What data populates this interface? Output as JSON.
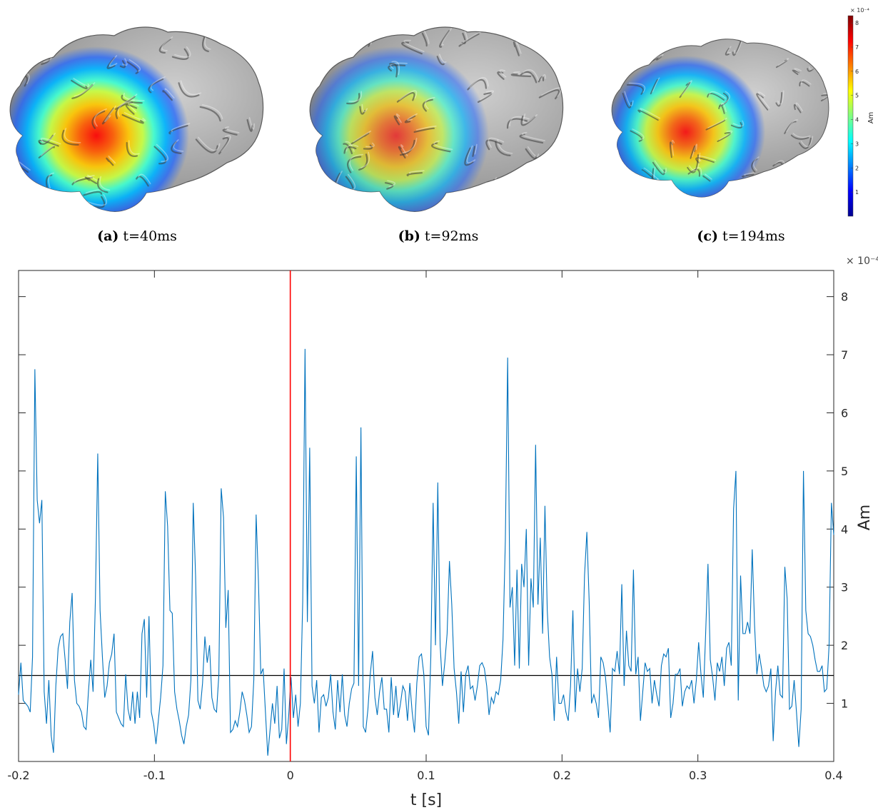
{
  "brains": [
    {
      "caption_label": "(a)",
      "caption_text": "t=40ms",
      "intensity": 1.0
    },
    {
      "caption_label": "(b)",
      "caption_text": "t=92ms",
      "intensity": 0.72
    },
    {
      "caption_label": "(c)",
      "caption_text": "t=194ms",
      "intensity": 0.92
    }
  ],
  "colorbar": {
    "exponent_label": "× 10⁻⁴",
    "unit_label": "Am",
    "ticks": [
      "1",
      "2",
      "3",
      "4",
      "5",
      "6",
      "7",
      "8"
    ],
    "range": [
      0,
      8.3
    ],
    "colors": [
      "#00008f",
      "#0000ff",
      "#0080ff",
      "#00ffff",
      "#80ff80",
      "#ffff00",
      "#ff8000",
      "#ff0000",
      "#800000"
    ]
  },
  "chart_data": {
    "type": "line",
    "xlabel": "t [s]",
    "ylabel": "Am",
    "y_exponent_label": "× 10⁻⁴",
    "xlim": [
      -0.2,
      0.4
    ],
    "ylim": [
      0,
      8.45
    ],
    "x_ticks": [
      "-0.2",
      "-0.1",
      "0",
      "0.1",
      "0.2",
      "0.3",
      "0.4"
    ],
    "y_ticks": [
      "1",
      "2",
      "3",
      "4",
      "5",
      "6",
      "7",
      "8"
    ],
    "threshold": 1.48,
    "marker_x": 0.0,
    "line_color": "#0072bd",
    "threshold_color": "#000000",
    "marker_color": "#ff0000",
    "x_start": -0.2,
    "x_step": 0.002,
    "values": [
      1.15,
      1.7,
      1.05,
      1.0,
      0.95,
      0.85,
      1.8,
      6.75,
      4.5,
      4.1,
      4.5,
      1.2,
      0.65,
      1.4,
      0.45,
      0.15,
      1.3,
      1.95,
      2.15,
      2.2,
      1.75,
      1.25,
      2.4,
      2.9,
      1.4,
      1.0,
      0.95,
      0.85,
      0.6,
      0.55,
      1.2,
      1.75,
      1.2,
      2.8,
      5.3,
      2.6,
      1.8,
      1.1,
      1.3,
      1.7,
      1.85,
      2.2,
      0.85,
      0.75,
      0.65,
      0.6,
      1.5,
      0.9,
      0.7,
      1.2,
      0.65,
      1.2,
      0.75,
      2.2,
      2.45,
      1.1,
      2.5,
      0.85,
      0.65,
      0.3,
      0.7,
      1.1,
      1.65,
      4.65,
      4.05,
      2.6,
      2.55,
      1.2,
      0.9,
      0.7,
      0.45,
      0.3,
      0.6,
      0.8,
      1.4,
      4.45,
      3.2,
      1.05,
      0.9,
      1.35,
      2.15,
      1.7,
      2.0,
      1.1,
      0.9,
      0.85,
      1.5,
      4.7,
      4.2,
      2.3,
      2.95,
      0.5,
      0.55,
      0.7,
      0.6,
      0.85,
      1.2,
      1.05,
      0.8,
      0.5,
      0.6,
      1.4,
      4.25,
      3.1,
      1.5,
      1.6,
      0.85,
      0.1,
      0.55,
      1.0,
      0.65,
      1.3,
      0.4,
      0.55,
      1.6,
      0.3,
      0.8,
      1.45,
      0.75,
      1.15,
      0.6,
      1.0,
      2.75,
      7.1,
      2.4,
      5.4,
      1.3,
      1.0,
      1.4,
      0.5,
      1.1,
      1.15,
      0.95,
      1.1,
      1.5,
      0.85,
      0.55,
      1.4,
      0.85,
      1.5,
      0.8,
      0.6,
      1.0,
      1.25,
      1.35,
      5.25,
      1.3,
      5.75,
      0.6,
      0.5,
      0.9,
      1.5,
      1.9,
      1.1,
      0.8,
      1.2,
      1.45,
      0.9,
      0.9,
      0.5,
      1.45,
      0.8,
      1.3,
      0.75,
      1.0,
      1.3,
      1.2,
      0.7,
      1.35,
      0.85,
      0.5,
      1.35,
      1.8,
      1.85,
      1.5,
      0.6,
      0.45,
      1.8,
      4.45,
      2.0,
      4.8,
      2.0,
      1.3,
      1.7,
      2.2,
      3.45,
      2.7,
      1.6,
      1.2,
      0.65,
      1.55,
      0.85,
      1.5,
      1.65,
      1.25,
      1.3,
      1.05,
      1.3,
      1.65,
      1.7,
      1.6,
      1.3,
      0.8,
      1.1,
      1.0,
      1.2,
      1.15,
      1.4,
      2.1,
      3.8,
      6.95,
      2.65,
      3.0,
      1.65,
      3.3,
      1.6,
      3.4,
      3.0,
      4.0,
      1.65,
      3.15,
      2.65,
      5.45,
      2.7,
      3.85,
      2.2,
      4.4,
      2.6,
      1.8,
      1.5,
      0.7,
      1.8,
      1.0,
      1.0,
      1.15,
      0.85,
      0.7,
      1.3,
      2.6,
      0.85,
      1.6,
      1.2,
      1.6,
      3.2,
      3.95,
      2.75,
      1.0,
      1.15,
      1.0,
      0.75,
      1.8,
      1.7,
      1.45,
      1.0,
      0.5,
      1.6,
      1.55,
      1.9,
      1.5,
      3.05,
      1.3,
      2.25,
      1.65,
      1.55,
      3.3,
      1.5,
      1.8,
      0.7,
      1.2,
      1.7,
      1.55,
      1.6,
      1.0,
      1.4,
      1.15,
      0.95,
      1.65,
      1.85,
      1.8,
      1.95,
      0.75,
      1.0,
      1.5,
      1.5,
      1.6,
      0.95,
      1.2,
      1.3,
      1.25,
      1.4,
      1.0,
      1.4,
      2.05,
      1.5,
      1.1,
      2.2,
      3.4,
      1.75,
      1.45,
      1.05,
      1.7,
      1.55,
      1.8,
      1.3,
      1.95,
      2.05,
      1.65,
      4.35,
      5.0,
      1.05,
      3.2,
      2.2,
      2.2,
      2.4,
      2.2,
      3.65,
      2.35,
      1.5,
      1.85,
      1.6,
      1.3,
      1.2,
      1.3,
      1.6,
      0.35,
      1.2,
      1.65,
      1.15,
      1.1,
      3.35,
      2.8,
      0.9,
      0.95,
      1.4,
      0.85,
      0.25,
      0.9,
      5.0,
      2.6,
      2.2,
      2.15,
      2.0,
      1.75,
      1.55,
      1.55,
      1.65,
      1.2,
      1.25,
      2.0,
      4.45,
      3.9
    ]
  }
}
